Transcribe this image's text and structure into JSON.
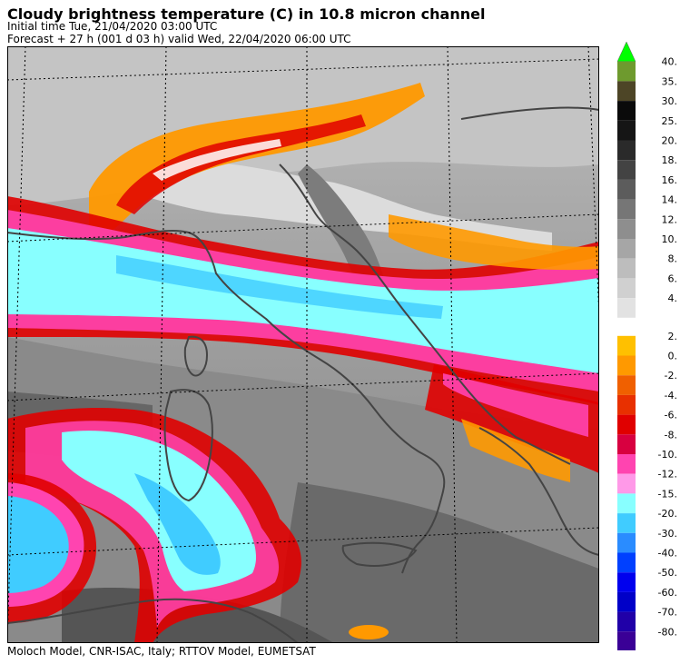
{
  "header": {
    "title": "Cloudy brightness temperature (C) in   10.8 micron channel",
    "initial_time": "Initial time  Tue, 21/04/2020  03:00 UTC",
    "forecast": "Forecast  +  27 h  (001 d 03 h)  valid Wed, 22/04/2020 06:00 UTC"
  },
  "footer": {
    "credit": "Moloch Model, CNR-ISAC, Italy; RTTOV Model, EUMETSAT"
  },
  "legend": {
    "top_arrow_color": "#00ff00",
    "bottom_arrow_color": "#330099",
    "warm_classes": [
      {
        "label": "40.",
        "color": "#6e9a2e"
      },
      {
        "label": "35.",
        "color": "#4d4526"
      },
      {
        "label": "30.",
        "color": "#0a0a0a"
      },
      {
        "label": "25.",
        "color": "#151515"
      },
      {
        "label": "20.",
        "color": "#2a2a2a"
      },
      {
        "label": "18.",
        "color": "#434343"
      },
      {
        "label": "16.",
        "color": "#5c5c5c"
      },
      {
        "label": "14.",
        "color": "#767676"
      },
      {
        "label": "12.",
        "color": "#8e8e8e"
      },
      {
        "label": "10.",
        "color": "#a6a6a6"
      },
      {
        "label": "8.",
        "color": "#bdbdbd"
      },
      {
        "label": "6.",
        "color": "#d0d0d0"
      },
      {
        "label": "4.",
        "color": "#e2e2e2"
      }
    ],
    "cold_classes": [
      {
        "label": "2.",
        "color": "#ffc000"
      },
      {
        "label": "0.",
        "color": "#ff9900"
      },
      {
        "label": "-2.",
        "color": "#f06000"
      },
      {
        "label": "-4.",
        "color": "#e83000"
      },
      {
        "label": "-6.",
        "color": "#e00000"
      },
      {
        "label": "-8.",
        "color": "#d80040"
      },
      {
        "label": "-10.",
        "color": "#ff44b0"
      },
      {
        "label": "-12.",
        "color": "#ff99e8"
      },
      {
        "label": "-15.",
        "color": "#88ffff"
      },
      {
        "label": "-20.",
        "color": "#40ccff"
      },
      {
        "label": "-30.",
        "color": "#2a8cff"
      },
      {
        "label": "-40.",
        "color": "#0040ff"
      },
      {
        "label": "-50.",
        "color": "#0000ee"
      },
      {
        "label": "-60.",
        "color": "#0000c8"
      },
      {
        "label": "-70.",
        "color": "#2000a8"
      },
      {
        "label": "-80.",
        "color": "#3a0096"
      }
    ]
  }
}
